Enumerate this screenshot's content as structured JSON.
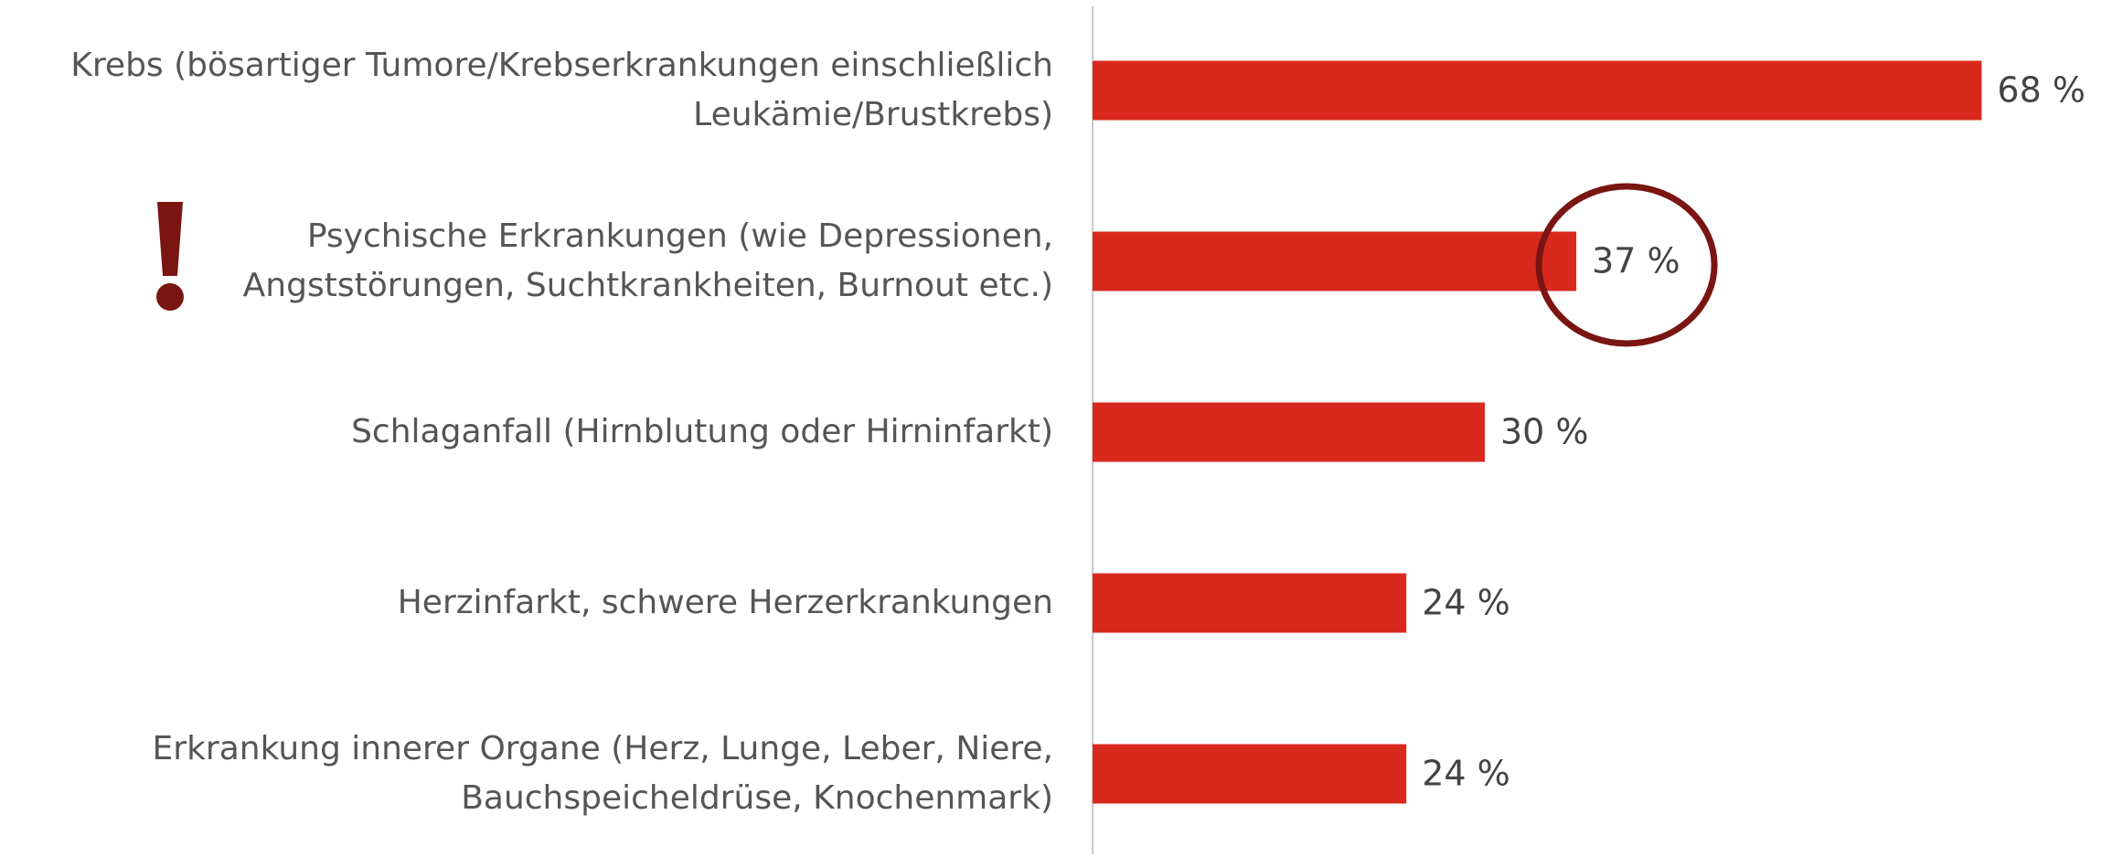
{
  "chart_data": {
    "type": "barh",
    "categories": [
      "Krebs (bösartiger Tumore/Krebserkrankungen einschließlich\nLeukämie/Brustkrebs)",
      "Psychische Erkrankungen (wie Depressionen,\nAngststörungen, Suchtkrankheiten, Burnout etc.)",
      "Schlaganfall (Hirnblutung oder Hirninfarkt)",
      "Herzinfarkt, schwere Herzerkrankungen",
      "Erkrankung innerer Organe (Herz, Lunge, Leber, Niere,\nBauchspeicheldrüse, Knochenmark)"
    ],
    "values": [
      68,
      37,
      30,
      24,
      24
    ],
    "value_labels": [
      "68 %",
      "37 %",
      "30 %",
      "24 %",
      "24 %"
    ],
    "color": "#d9291e",
    "xlim": [
      0,
      70
    ]
  }
}
